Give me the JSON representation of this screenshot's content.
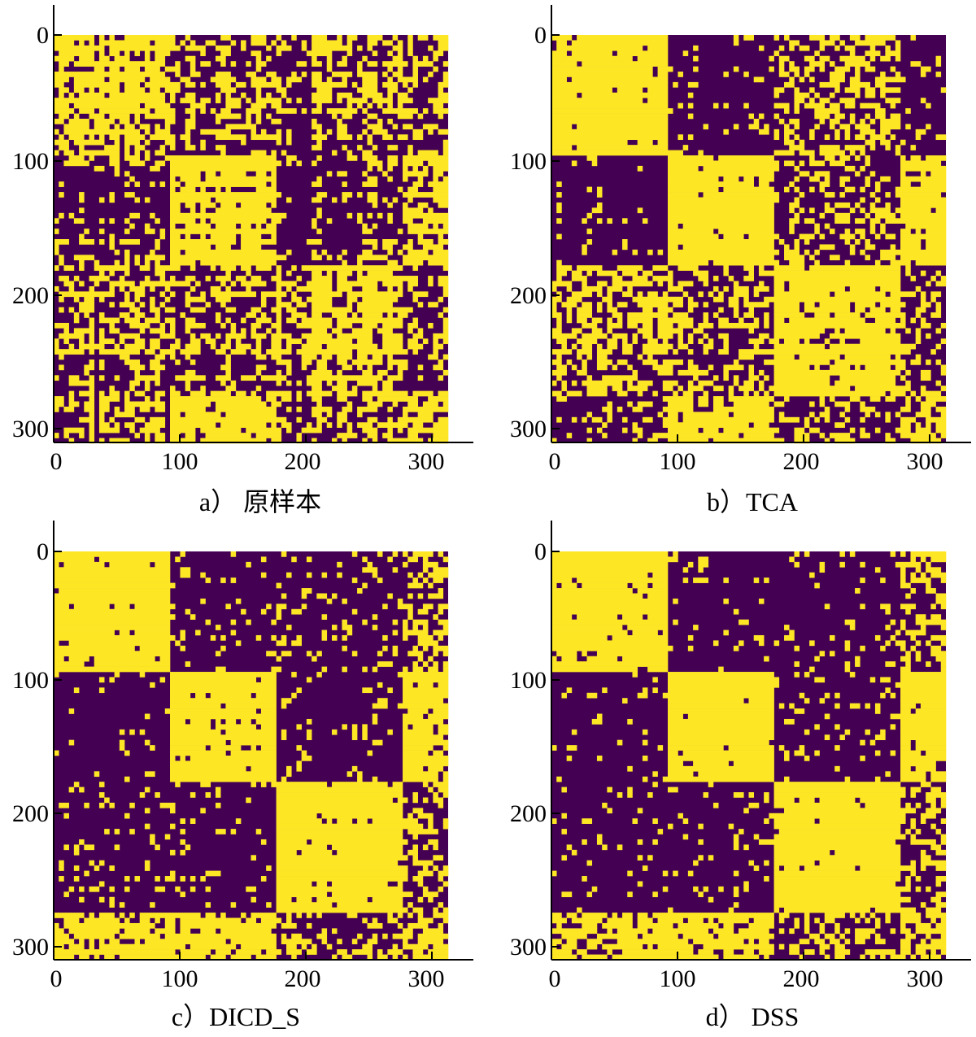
{
  "colors": {
    "high": "#fde725",
    "low": "#440154"
  },
  "chart_data": [
    {
      "type": "heatmap",
      "caption": "a） 原样本",
      "n": 312,
      "xlim": [
        0,
        312
      ],
      "ylim": [
        0,
        312
      ],
      "x_ticks": [
        "0",
        "100",
        "200",
        "300"
      ],
      "y_ticks": [
        "0",
        "100",
        "200",
        "300"
      ],
      "groups": [
        0,
        92,
        173,
        275,
        312
      ],
      "block_fill": [
        [
          0.78,
          0.35,
          0.4,
          0.45
        ],
        [
          0.28,
          0.95,
          0.25,
          0.8
        ],
        [
          0.45,
          0.35,
          0.7,
          0.4
        ],
        [
          0.4,
          0.85,
          0.35,
          0.75
        ]
      ],
      "noise": 0.22
    },
    {
      "type": "heatmap",
      "caption": "b）TCA",
      "n": 312,
      "xlim": [
        0,
        312
      ],
      "ylim": [
        0,
        312
      ],
      "x_ticks": [
        "0",
        "100",
        "200",
        "300"
      ],
      "y_ticks": [
        "0",
        "100",
        "200",
        "300"
      ],
      "groups": [
        0,
        92,
        173,
        275,
        312
      ],
      "block_fill": [
        [
          0.96,
          0.06,
          0.5,
          0.15
        ],
        [
          0.06,
          0.98,
          0.35,
          0.95
        ],
        [
          0.55,
          0.4,
          0.9,
          0.4
        ],
        [
          0.25,
          0.9,
          0.35,
          0.7
        ]
      ],
      "noise": 0.08
    },
    {
      "type": "heatmap",
      "caption": "c）DICD_S",
      "n": 312,
      "xlim": [
        0,
        312
      ],
      "ylim": [
        0,
        312
      ],
      "x_ticks": [
        "0",
        "100",
        "200",
        "300"
      ],
      "y_ticks": [
        "0",
        "100",
        "200",
        "300"
      ],
      "groups": [
        0,
        92,
        173,
        275,
        312
      ],
      "block_fill": [
        [
          0.95,
          0.08,
          0.15,
          0.5
        ],
        [
          0.06,
          0.99,
          0.1,
          0.92
        ],
        [
          0.1,
          0.1,
          0.98,
          0.35
        ],
        [
          0.85,
          0.88,
          0.35,
          0.7
        ]
      ],
      "noise": 0.06
    },
    {
      "type": "heatmap",
      "caption": "d） DSS",
      "n": 312,
      "xlim": [
        0,
        312
      ],
      "ylim": [
        0,
        312
      ],
      "x_ticks": [
        "0",
        "100",
        "200",
        "300"
      ],
      "y_ticks": [
        "0",
        "100",
        "200",
        "300"
      ],
      "groups": [
        0,
        92,
        173,
        275,
        312
      ],
      "block_fill": [
        [
          0.96,
          0.08,
          0.1,
          0.45
        ],
        [
          0.06,
          0.99,
          0.1,
          0.92
        ],
        [
          0.08,
          0.1,
          0.98,
          0.35
        ],
        [
          0.8,
          0.85,
          0.35,
          0.7
        ]
      ],
      "noise": 0.05
    }
  ]
}
